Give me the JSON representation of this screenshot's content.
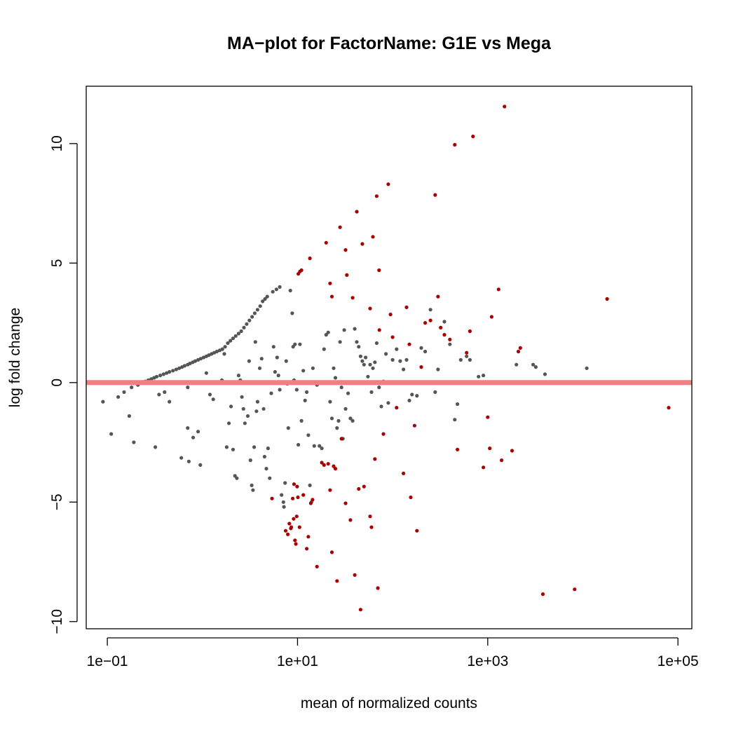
{
  "chart_data": {
    "type": "scatter",
    "title": "MA−plot for FactorName: G1E vs Mega",
    "xlabel": "mean of normalized counts",
    "ylabel": "log fold change",
    "x_scale": "log10",
    "xlim": [
      0.06,
      140000
    ],
    "ylim": [
      -10.3,
      12.4
    ],
    "x_ticks": [
      0.1,
      10,
      1000,
      100000
    ],
    "x_tick_labels": [
      "1e−01",
      "1e+01",
      "1e+03",
      "1e+05"
    ],
    "y_ticks": [
      -10,
      -5,
      0,
      5,
      10
    ],
    "y_tick_labels": [
      "−10",
      "−5",
      "0",
      "5",
      "10"
    ],
    "hline": {
      "y": 0,
      "color": "#f08080"
    },
    "colors": {
      "not_significant": "#555555",
      "significant": "#aa0000"
    },
    "grid": false,
    "legend": "none",
    "series": [
      {
        "color": "#555555",
        "points": [
          [
            0.09,
            -0.8
          ],
          [
            0.11,
            -2.15
          ],
          [
            0.13,
            -0.6
          ],
          [
            0.15,
            -0.4
          ],
          [
            0.17,
            -1.4
          ],
          [
            0.18,
            -0.2
          ],
          [
            0.19,
            -2.5
          ],
          [
            0.21,
            -0.1
          ],
          [
            0.23,
            0
          ],
          [
            0.25,
            0.05
          ],
          [
            0.27,
            0.1
          ],
          [
            0.29,
            0.15
          ],
          [
            0.31,
            0.2
          ],
          [
            0.33,
            0.25
          ],
          [
            0.36,
            0.3
          ],
          [
            0.39,
            0.35
          ],
          [
            0.42,
            0.4
          ],
          [
            0.45,
            0.45
          ],
          [
            0.49,
            0.5
          ],
          [
            0.53,
            0.55
          ],
          [
            0.57,
            0.6
          ],
          [
            0.61,
            0.65
          ],
          [
            0.65,
            0.7
          ],
          [
            0.7,
            0.75
          ],
          [
            0.74,
            0.8
          ],
          [
            0.79,
            0.85
          ],
          [
            0.84,
            0.9
          ],
          [
            0.9,
            0.95
          ],
          [
            0.96,
            1.0
          ],
          [
            1.03,
            1.05
          ],
          [
            1.1,
            1.1
          ],
          [
            1.17,
            1.15
          ],
          [
            1.25,
            1.2
          ],
          [
            1.33,
            1.25
          ],
          [
            1.42,
            1.3
          ],
          [
            1.52,
            1.35
          ],
          [
            1.62,
            1.4
          ],
          [
            1.73,
            1.5
          ],
          [
            1.85,
            1.65
          ],
          [
            1.97,
            1.75
          ],
          [
            2.1,
            1.85
          ],
          [
            2.24,
            1.95
          ],
          [
            2.4,
            2.05
          ],
          [
            2.56,
            2.15
          ],
          [
            2.73,
            2.3
          ],
          [
            2.92,
            2.45
          ],
          [
            3.12,
            2.6
          ],
          [
            3.33,
            2.75
          ],
          [
            3.55,
            2.9
          ],
          [
            3.8,
            3.05
          ],
          [
            4.05,
            3.2
          ],
          [
            4.3,
            3.4
          ],
          [
            4.55,
            3.5
          ],
          [
            4.8,
            3.6
          ],
          [
            5.5,
            3.8
          ],
          [
            6.0,
            3.9
          ],
          [
            6.5,
            4.0
          ],
          [
            0.32,
            -2.7
          ],
          [
            0.35,
            -0.5
          ],
          [
            0.4,
            -0.4
          ],
          [
            0.45,
            -0.8
          ],
          [
            0.6,
            -3.15
          ],
          [
            0.7,
            -1.9
          ],
          [
            0.72,
            -3.3
          ],
          [
            0.8,
            -2.3
          ],
          [
            0.9,
            -2.05
          ],
          [
            0.95,
            -3.45
          ],
          [
            0.7,
            -0.2
          ],
          [
            0.75,
            0
          ],
          [
            1.1,
            0.4
          ],
          [
            1.2,
            -0.5
          ],
          [
            1.3,
            -0.7
          ],
          [
            1.5,
            0
          ],
          [
            1.6,
            0.1
          ],
          [
            1.7,
            1.2
          ],
          [
            1.8,
            -2.7
          ],
          [
            1.9,
            -1.7
          ],
          [
            2.0,
            -1.0
          ],
          [
            2.1,
            -2.8
          ],
          [
            2.2,
            -3.9
          ],
          [
            2.3,
            -4.0
          ],
          [
            2.4,
            0.3
          ],
          [
            2.5,
            0.1
          ],
          [
            2.6,
            -0.6
          ],
          [
            2.7,
            -1.1
          ],
          [
            2.8,
            -1.7
          ],
          [
            3.0,
            -1.4
          ],
          [
            3.1,
            0.9
          ],
          [
            3.2,
            -3.25
          ],
          [
            3.3,
            -4.3
          ],
          [
            3.4,
            -4.5
          ],
          [
            3.5,
            -2.7
          ],
          [
            3.6,
            1.7
          ],
          [
            3.7,
            -1.2
          ],
          [
            3.8,
            -0.8
          ],
          [
            4.0,
            0.6
          ],
          [
            4.2,
            1.0
          ],
          [
            4.4,
            -1.1
          ],
          [
            4.5,
            -3.1
          ],
          [
            4.7,
            -3.6
          ],
          [
            4.9,
            -2.75
          ],
          [
            5.1,
            -4.0
          ],
          [
            5.3,
            -0.45
          ],
          [
            5.6,
            1.5
          ],
          [
            5.8,
            0.45
          ],
          [
            6.1,
            1.05
          ],
          [
            6.3,
            0.3
          ],
          [
            6.5,
            -0.3
          ],
          [
            6.8,
            -4.7
          ],
          [
            7.1,
            -5.0
          ],
          [
            7.2,
            -5.2
          ],
          [
            7.4,
            -4.2
          ],
          [
            7.6,
            0.9
          ],
          [
            7.8,
            -0.05
          ],
          [
            8.0,
            -1.9
          ],
          [
            8.4,
            3.85
          ],
          [
            8.8,
            2.9
          ],
          [
            9.0,
            1.5
          ],
          [
            9.2,
            0.1
          ],
          [
            9.4,
            1.6
          ],
          [
            9.8,
            -0.3
          ],
          [
            10.2,
            -2.6
          ],
          [
            10.6,
            1.6
          ],
          [
            11.0,
            -1.6
          ],
          [
            11.5,
            0.5
          ],
          [
            12.0,
            -0.75
          ],
          [
            12.5,
            -0.4
          ],
          [
            13.0,
            -2.2
          ],
          [
            13.5,
            -4.3
          ],
          [
            14.0,
            -5.0
          ],
          [
            14.5,
            0.6
          ],
          [
            15.0,
            -2.65
          ],
          [
            16.0,
            -0.1
          ],
          [
            17.0,
            -2.65
          ],
          [
            18.0,
            -2.75
          ],
          [
            19.0,
            1.4
          ],
          [
            20.0,
            2.0
          ],
          [
            21.0,
            2.1
          ],
          [
            22.0,
            -0.8
          ],
          [
            23.0,
            -1.5
          ],
          [
            24.0,
            0.6
          ],
          [
            25.0,
            0.2
          ],
          [
            26.0,
            -1.9
          ],
          [
            27.0,
            -1.6
          ],
          [
            28.0,
            1.7
          ],
          [
            29.0,
            -0.2
          ],
          [
            30.0,
            -2.35
          ],
          [
            31.0,
            2.2
          ],
          [
            32.0,
            -1.1
          ],
          [
            34.0,
            -0.45
          ],
          [
            36.0,
            -1.5
          ],
          [
            38.0,
            -1.6
          ],
          [
            40.0,
            2.25
          ],
          [
            42.0,
            1.7
          ],
          [
            44.0,
            1.5
          ],
          [
            46.0,
            1.1
          ],
          [
            48.0,
            0.9
          ],
          [
            50.0,
            0.75
          ],
          [
            52.0,
            1.05
          ],
          [
            55.0,
            0.25
          ],
          [
            58.0,
            0.75
          ],
          [
            60.0,
            -0.4
          ],
          [
            62.0,
            0.6
          ],
          [
            65.0,
            0.85
          ],
          [
            68.0,
            1.65
          ],
          [
            72.0,
            -0.2
          ],
          [
            76.0,
            -1.0
          ],
          [
            80.0,
            0.05
          ],
          [
            85.0,
            1.2
          ],
          [
            90.0,
            -0.85
          ],
          [
            100.0,
            0.95
          ],
          [
            110.0,
            1.4
          ],
          [
            120.0,
            0.9
          ],
          [
            130.0,
            0.55
          ],
          [
            140.0,
            0.95
          ],
          [
            150.0,
            -0.75
          ],
          [
            160.0,
            -0.5
          ],
          [
            180.0,
            -0.55
          ],
          [
            200.0,
            1.45
          ],
          [
            220.0,
            1.3
          ],
          [
            250.0,
            3.05
          ],
          [
            280.0,
            -0.4
          ],
          [
            300.0,
            0.55
          ],
          [
            350.0,
            2.55
          ],
          [
            400.0,
            1.6
          ],
          [
            450.0,
            -1.55
          ],
          [
            480.0,
            -0.9
          ],
          [
            520.0,
            0.95
          ],
          [
            600.0,
            1.1
          ],
          [
            650.0,
            0.95
          ],
          [
            800.0,
            0.25
          ],
          [
            900.0,
            0.3
          ],
          [
            2000.0,
            0.75
          ],
          [
            3000.0,
            0.75
          ],
          [
            3200.0,
            0.65
          ],
          [
            4000.0,
            0.35
          ],
          [
            11000.0,
            0.6
          ]
        ]
      },
      {
        "color": "#aa0000",
        "points": [
          [
            10.2,
            4.55
          ],
          [
            10.6,
            4.65
          ],
          [
            11.0,
            4.7
          ],
          [
            13.5,
            5.2
          ],
          [
            20.0,
            5.85
          ],
          [
            22.0,
            4.15
          ],
          [
            23.0,
            3.6
          ],
          [
            28.0,
            6.5
          ],
          [
            32.0,
            5.55
          ],
          [
            33.0,
            4.5
          ],
          [
            38.0,
            3.55
          ],
          [
            42.0,
            7.15
          ],
          [
            48.0,
            5.8
          ],
          [
            58.0,
            3.1
          ],
          [
            62.0,
            6.1
          ],
          [
            68.0,
            7.8
          ],
          [
            72.0,
            4.7
          ],
          [
            72.5,
            2.2
          ],
          [
            90.0,
            8.3
          ],
          [
            95.0,
            2.85
          ],
          [
            100.0,
            1.9
          ],
          [
            140.0,
            3.15
          ],
          [
            150.0,
            1.6
          ],
          [
            170.0,
            -1.8
          ],
          [
            180.0,
            -6.2
          ],
          [
            200.0,
            0.65
          ],
          [
            220.0,
            2.5
          ],
          [
            250.0,
            2.6
          ],
          [
            280.0,
            7.85
          ],
          [
            300.0,
            3.6
          ],
          [
            320.0,
            2.3
          ],
          [
            350.0,
            2.0
          ],
          [
            400.0,
            1.8
          ],
          [
            450.0,
            9.95
          ],
          [
            480.0,
            -2.8
          ],
          [
            600.0,
            1.25
          ],
          [
            650.0,
            2.15
          ],
          [
            700.0,
            10.3
          ],
          [
            900.0,
            -3.55
          ],
          [
            1000.0,
            -1.45
          ],
          [
            1050.0,
            -2.75
          ],
          [
            1100.0,
            2.75
          ],
          [
            1300.0,
            3.9
          ],
          [
            1400.0,
            -3.25
          ],
          [
            1500.0,
            11.55
          ],
          [
            1800.0,
            -2.85
          ],
          [
            2100.0,
            1.3
          ],
          [
            2200.0,
            1.45
          ],
          [
            3800.0,
            -8.85
          ],
          [
            8200.0,
            -8.65
          ],
          [
            18000.0,
            3.5
          ],
          [
            80000.0,
            -1.05
          ],
          [
            5.4,
            -4.85
          ],
          [
            7.5,
            -6.2
          ],
          [
            7.9,
            -6.35
          ],
          [
            8.2,
            -5.9
          ],
          [
            8.5,
            -6.1
          ],
          [
            8.6,
            -6.05
          ],
          [
            8.9,
            -4.85
          ],
          [
            9.1,
            -5.7
          ],
          [
            9.2,
            -4.25
          ],
          [
            9.4,
            -6.6
          ],
          [
            9.6,
            -6.75
          ],
          [
            9.8,
            -5.6
          ],
          [
            9.9,
            -4.35
          ],
          [
            10.1,
            -4.8
          ],
          [
            10.5,
            -6.05
          ],
          [
            11.5,
            -4.7
          ],
          [
            12.5,
            -6.95
          ],
          [
            13.0,
            -6.45
          ],
          [
            13.8,
            -5.05
          ],
          [
            14.4,
            -4.9
          ],
          [
            16.0,
            -7.7
          ],
          [
            18.0,
            -3.35
          ],
          [
            19.0,
            -3.45
          ],
          [
            21.0,
            -3.4
          ],
          [
            22.0,
            -4.5
          ],
          [
            23.0,
            -7.1
          ],
          [
            24.0,
            -3.5
          ],
          [
            25.0,
            -3.6
          ],
          [
            26.0,
            -8.3
          ],
          [
            29.0,
            -2.35
          ],
          [
            32.0,
            -5.05
          ],
          [
            36.0,
            -5.75
          ],
          [
            40.0,
            -8.05
          ],
          [
            44.0,
            -4.45
          ],
          [
            46.0,
            -9.5
          ],
          [
            50.0,
            -4.35
          ],
          [
            58.0,
            -5.6
          ],
          [
            60.0,
            -6.05
          ],
          [
            65.0,
            -3.2
          ],
          [
            70.0,
            -8.6
          ],
          [
            80.0,
            -2.15
          ],
          [
            110.0,
            -1.05
          ],
          [
            130.0,
            -3.8
          ],
          [
            155.0,
            -4.8
          ]
        ]
      }
    ]
  }
}
